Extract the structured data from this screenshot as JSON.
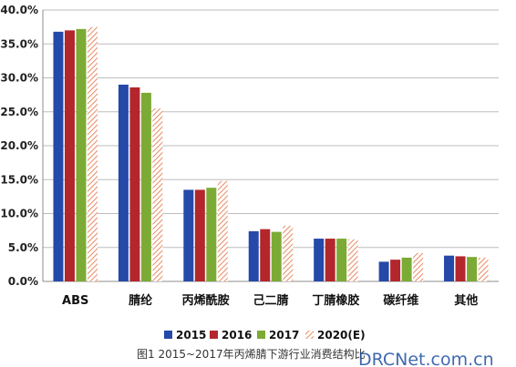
{
  "chart_data": {
    "type": "bar",
    "title": "",
    "xlabel": "",
    "ylabel": "",
    "categories": [
      "ABS",
      "腈纶",
      "丙烯酰胺",
      "己二腈",
      "丁腈橡胶",
      "碳纤维",
      "其他"
    ],
    "series": [
      {
        "name": "2015",
        "color": "#2449a8",
        "pattern": "solid",
        "values": [
          36.8,
          29.0,
          13.5,
          7.4,
          6.3,
          2.9,
          3.8
        ]
      },
      {
        "name": "2016",
        "color": "#b3262c",
        "pattern": "solid",
        "values": [
          37.0,
          28.6,
          13.5,
          7.7,
          6.3,
          3.2,
          3.7
        ]
      },
      {
        "name": "2017",
        "color": "#7bab34",
        "pattern": "solid",
        "values": [
          37.2,
          27.8,
          13.8,
          7.3,
          6.3,
          3.5,
          3.6
        ]
      },
      {
        "name": "2020(E)",
        "color": "#e98a62",
        "pattern": "hatched",
        "values": [
          37.5,
          25.5,
          14.8,
          8.2,
          6.2,
          4.2,
          3.5
        ]
      }
    ],
    "ylim": [
      0,
      40
    ],
    "yticks": [
      "0.0%",
      "5.0%",
      "10.0%",
      "15.0%",
      "20.0%",
      "25.0%",
      "30.0%",
      "35.0%",
      "40.0%"
    ],
    "grid": true,
    "legend_position": "bottom"
  },
  "caption": "图1  2015~2017年丙烯腈下游行业消费结构比",
  "watermark": "DRCNet.com.cn",
  "colors": {
    "axis": "#8c8c8c",
    "grid": "#bdbdbd",
    "background": "#ffffff"
  }
}
